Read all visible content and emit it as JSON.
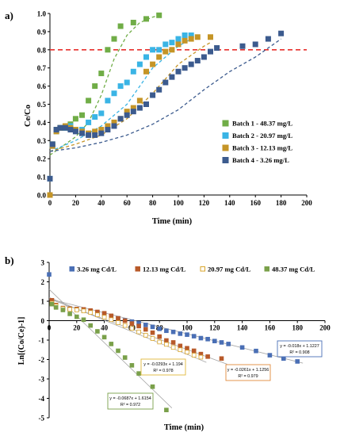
{
  "chart_data": [
    {
      "panel_label": "a)",
      "type": "scatter",
      "xlabel": "Time (min)",
      "ylabel": "Ce/Co",
      "xlim": [
        0,
        200
      ],
      "ylim": [
        0,
        1.0
      ],
      "xticks": [
        "0",
        "20",
        "40",
        "60",
        "80",
        "100",
        "120",
        "140",
        "160",
        "180",
        "200"
      ],
      "yticks": [
        "0.0",
        "0.1",
        "0.2",
        "0.3",
        "0.4",
        "0.5",
        "0.6",
        "0.7",
        "0.8",
        "0.9",
        "1.0"
      ],
      "legend_position": "right-middle",
      "reference_line": {
        "y": 0.8,
        "color": "#e8302c",
        "style": "dashed"
      },
      "series": [
        {
          "name": "Batch 1 - 48.37 mg/L",
          "color": "#70ad47",
          "marker": "square",
          "points": [
            [
              0,
              0.0
            ],
            [
              2,
              0.28
            ],
            [
              5,
              0.36
            ],
            [
              8,
              0.37
            ],
            [
              12,
              0.37
            ],
            [
              16,
              0.39
            ],
            [
              20,
              0.42
            ],
            [
              25,
              0.44
            ],
            [
              30,
              0.52
            ],
            [
              35,
              0.6
            ],
            [
              40,
              0.67
            ],
            [
              45,
              0.8
            ],
            [
              50,
              0.86
            ],
            [
              55,
              0.93
            ],
            [
              65,
              0.95
            ],
            [
              75,
              0.97
            ],
            [
              85,
              0.99
            ]
          ],
          "fit": [
            [
              0,
              0.22
            ],
            [
              10,
              0.27
            ],
            [
              20,
              0.32
            ],
            [
              30,
              0.4
            ],
            [
              40,
              0.55
            ],
            [
              50,
              0.75
            ],
            [
              60,
              0.88
            ],
            [
              70,
              0.95
            ],
            [
              80,
              0.98
            ],
            [
              85,
              0.99
            ]
          ]
        },
        {
          "name": "Batch 2 - 20.97 mg/L",
          "color": "#3ab4e5",
          "marker": "square",
          "points": [
            [
              0,
              0.09
            ],
            [
              2,
              0.27
            ],
            [
              5,
              0.35
            ],
            [
              8,
              0.37
            ],
            [
              12,
              0.37
            ],
            [
              16,
              0.38
            ],
            [
              20,
              0.36
            ],
            [
              25,
              0.36
            ],
            [
              30,
              0.4
            ],
            [
              35,
              0.43
            ],
            [
              40,
              0.45
            ],
            [
              45,
              0.52
            ],
            [
              50,
              0.56
            ],
            [
              55,
              0.6
            ],
            [
              60,
              0.62
            ],
            [
              65,
              0.68
            ],
            [
              70,
              0.72
            ],
            [
              75,
              0.76
            ],
            [
              80,
              0.8
            ],
            [
              85,
              0.8
            ],
            [
              90,
              0.83
            ],
            [
              95,
              0.84
            ],
            [
              100,
              0.86
            ],
            [
              105,
              0.88
            ],
            [
              110,
              0.88
            ]
          ],
          "fit": [
            [
              0,
              0.24
            ],
            [
              20,
              0.3
            ],
            [
              40,
              0.38
            ],
            [
              60,
              0.5
            ],
            [
              80,
              0.7
            ],
            [
              100,
              0.82
            ],
            [
              110,
              0.86
            ]
          ]
        },
        {
          "name": "Batch 3 - 12.13 mg/L",
          "color": "#c59527",
          "marker": "square",
          "points": [
            [
              0,
              0.0
            ],
            [
              2,
              0.27
            ],
            [
              5,
              0.35
            ],
            [
              8,
              0.37
            ],
            [
              12,
              0.38
            ],
            [
              16,
              0.37
            ],
            [
              20,
              0.36
            ],
            [
              25,
              0.35
            ],
            [
              30,
              0.34
            ],
            [
              35,
              0.35
            ],
            [
              40,
              0.36
            ],
            [
              45,
              0.38
            ],
            [
              50,
              0.4
            ],
            [
              55,
              0.42
            ],
            [
              60,
              0.46
            ],
            [
              65,
              0.48
            ],
            [
              70,
              0.52
            ],
            [
              75,
              0.68
            ],
            [
              80,
              0.72
            ],
            [
              85,
              0.76
            ],
            [
              90,
              0.79
            ],
            [
              95,
              0.8
            ],
            [
              100,
              0.83
            ],
            [
              105,
              0.85
            ],
            [
              110,
              0.86
            ],
            [
              115,
              0.87
            ],
            [
              125,
              0.87
            ]
          ],
          "fit": [
            [
              0,
              0.24
            ],
            [
              20,
              0.28
            ],
            [
              40,
              0.33
            ],
            [
              60,
              0.42
            ],
            [
              80,
              0.56
            ],
            [
              100,
              0.72
            ],
            [
              120,
              0.82
            ],
            [
              125,
              0.84
            ]
          ]
        },
        {
          "name": "Batch 4 - 3.26 mg/L",
          "color": "#3c5b8e",
          "marker": "square",
          "points": [
            [
              0,
              0.09
            ],
            [
              2,
              0.28
            ],
            [
              5,
              0.36
            ],
            [
              8,
              0.37
            ],
            [
              12,
              0.37
            ],
            [
              16,
              0.36
            ],
            [
              20,
              0.35
            ],
            [
              25,
              0.34
            ],
            [
              30,
              0.33
            ],
            [
              35,
              0.33
            ],
            [
              40,
              0.34
            ],
            [
              45,
              0.36
            ],
            [
              50,
              0.38
            ],
            [
              55,
              0.42
            ],
            [
              60,
              0.44
            ],
            [
              65,
              0.46
            ],
            [
              70,
              0.48
            ],
            [
              75,
              0.5
            ],
            [
              80,
              0.55
            ],
            [
              85,
              0.58
            ],
            [
              90,
              0.62
            ],
            [
              95,
              0.65
            ],
            [
              100,
              0.68
            ],
            [
              105,
              0.7
            ],
            [
              110,
              0.72
            ],
            [
              115,
              0.74
            ],
            [
              120,
              0.76
            ],
            [
              125,
              0.79
            ],
            [
              130,
              0.81
            ],
            [
              150,
              0.82
            ],
            [
              160,
              0.83
            ],
            [
              170,
              0.86
            ],
            [
              180,
              0.89
            ]
          ],
          "fit": [
            [
              0,
              0.24
            ],
            [
              20,
              0.26
            ],
            [
              40,
              0.29
            ],
            [
              60,
              0.33
            ],
            [
              80,
              0.39
            ],
            [
              100,
              0.47
            ],
            [
              120,
              0.58
            ],
            [
              140,
              0.68
            ],
            [
              160,
              0.76
            ],
            [
              180,
              0.86
            ]
          ]
        }
      ]
    },
    {
      "panel_label": "b)",
      "type": "scatter",
      "xlabel": "Time (min)",
      "ylabel": "Ln[(Co/Ce)-1]",
      "xlim": [
        0,
        200
      ],
      "ylim": [
        -5,
        3
      ],
      "xticks": [
        "0",
        "20",
        "40",
        "60",
        "80",
        "100",
        "120",
        "140",
        "160",
        "180",
        "200"
      ],
      "yticks": [
        "-5",
        "-4",
        "-3",
        "-2",
        "-1",
        "0",
        "1",
        "2",
        "3"
      ],
      "legend_position": "top",
      "series": [
        {
          "name": "3.26 mg Cd/L",
          "color": "#4a6fb5",
          "marker": "square-filled",
          "points": [
            [
              0,
              2.38
            ],
            [
              2,
              0.95
            ],
            [
              5,
              0.72
            ],
            [
              10,
              0.6
            ],
            [
              15,
              0.62
            ],
            [
              20,
              0.58
            ],
            [
              25,
              0.52
            ],
            [
              30,
              0.48
            ],
            [
              35,
              0.4
            ],
            [
              40,
              0.3
            ],
            [
              45,
              0.2
            ],
            [
              50,
              0.12
            ],
            [
              55,
              0.02
            ],
            [
              60,
              -0.05
            ],
            [
              65,
              -0.12
            ],
            [
              70,
              -0.22
            ],
            [
              75,
              -0.32
            ],
            [
              80,
              -0.42
            ],
            [
              85,
              -0.52
            ],
            [
              90,
              -0.58
            ],
            [
              95,
              -0.67
            ],
            [
              100,
              -0.72
            ],
            [
              105,
              -0.8
            ],
            [
              110,
              -0.9
            ],
            [
              115,
              -0.95
            ],
            [
              120,
              -1.05
            ],
            [
              125,
              -1.12
            ],
            [
              130,
              -1.2
            ],
            [
              140,
              -1.38
            ],
            [
              150,
              -1.56
            ],
            [
              160,
              -1.78
            ],
            [
              170,
              -1.95
            ],
            [
              180,
              -2.1
            ]
          ],
          "trend": {
            "label": "y = -0.018x + 1.1227",
            "r2": "R² = 0.908",
            "slope": -0.018,
            "intercept": 1.1227
          }
        },
        {
          "name": "12.13 mg Cd/L",
          "color": "#b85a2a",
          "marker": "square-filled",
          "points": [
            [
              2,
              1.05
            ],
            [
              5,
              0.8
            ],
            [
              10,
              0.65
            ],
            [
              15,
              0.62
            ],
            [
              20,
              0.6
            ],
            [
              25,
              0.58
            ],
            [
              30,
              0.52
            ],
            [
              35,
              0.45
            ],
            [
              40,
              0.38
            ],
            [
              45,
              0.25
            ],
            [
              50,
              0.12
            ],
            [
              55,
              0.0
            ],
            [
              60,
              -0.15
            ],
            [
              65,
              -0.28
            ],
            [
              70,
              -0.45
            ],
            [
              75,
              -0.62
            ],
            [
              80,
              -0.82
            ],
            [
              85,
              -1.02
            ],
            [
              90,
              -1.12
            ],
            [
              95,
              -1.3
            ],
            [
              100,
              -1.42
            ],
            [
              105,
              -1.55
            ],
            [
              110,
              -1.72
            ],
            [
              115,
              -1.85
            ],
            [
              125,
              -1.95
            ]
          ],
          "trend": {
            "label": "y = -0.0261x + 1.1256",
            "r2": "R² = 0.979",
            "slope": -0.0261,
            "intercept": 1.1256
          }
        },
        {
          "name": "20.97 mg Cd/L",
          "color": "#d9a52a",
          "marker": "square-open",
          "points": [
            [
              2,
              0.9
            ],
            [
              5,
              0.75
            ],
            [
              10,
              0.62
            ],
            [
              15,
              0.58
            ],
            [
              20,
              0.55
            ],
            [
              25,
              0.5
            ],
            [
              30,
              0.42
            ],
            [
              35,
              0.3
            ],
            [
              40,
              0.18
            ],
            [
              45,
              0.05
            ],
            [
              50,
              -0.1
            ],
            [
              55,
              -0.25
            ],
            [
              60,
              -0.4
            ],
            [
              65,
              -0.58
            ],
            [
              70,
              -0.75
            ],
            [
              75,
              -0.92
            ],
            [
              80,
              -1.1
            ],
            [
              85,
              -1.22
            ],
            [
              90,
              -1.38
            ],
            [
              95,
              -1.5
            ],
            [
              100,
              -1.62
            ],
            [
              105,
              -1.78
            ],
            [
              110,
              -1.88
            ]
          ],
          "trend": {
            "label": "y = -0.0293x + 1.194",
            "r2": "R² = 0.978",
            "slope": -0.0293,
            "intercept": 1.194
          }
        },
        {
          "name": "48.37 mg Cd/L",
          "color": "#7aa04a",
          "marker": "square-filled",
          "points": [
            [
              2,
              0.85
            ],
            [
              5,
              0.68
            ],
            [
              10,
              0.55
            ],
            [
              15,
              0.35
            ],
            [
              20,
              0.2
            ],
            [
              25,
              0.05
            ],
            [
              30,
              -0.25
            ],
            [
              35,
              -0.55
            ],
            [
              40,
              -0.85
            ],
            [
              45,
              -1.2
            ],
            [
              50,
              -1.55
            ],
            [
              55,
              -1.9
            ],
            [
              60,
              -2.3
            ],
            [
              65,
              -2.72
            ],
            [
              75,
              -3.4
            ],
            [
              85,
              -4.6
            ]
          ],
          "trend": {
            "label": "y = -0.0687x + 1.6154",
            "r2": "R² = 0.972",
            "slope": -0.0687,
            "intercept": 1.6154
          }
        }
      ]
    }
  ]
}
